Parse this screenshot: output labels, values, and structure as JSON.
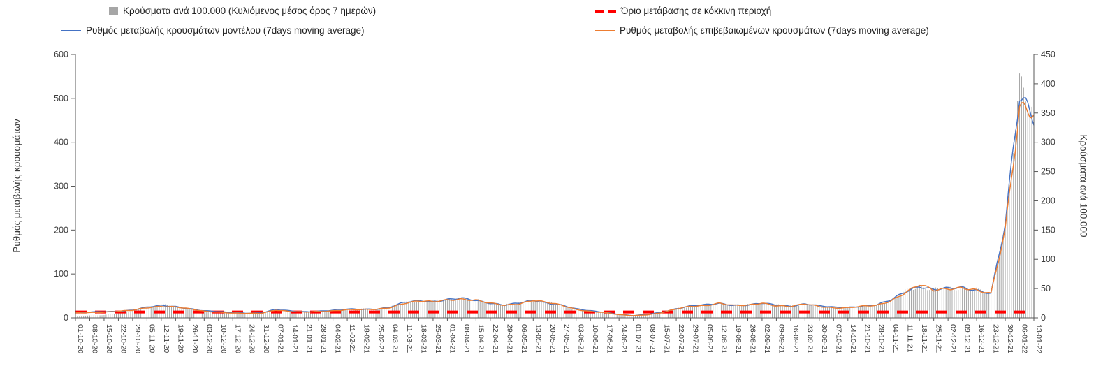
{
  "legend": {
    "bar": "Κρούσματα ανά 100.000 (Κυλιόμενος μέσος όρος 7 ημερών)",
    "threshold": "Όριο μετάβασης σε κόκκινη περιοχή",
    "model": "Ρυθμός μεταβολής κρουσμάτων μοντέλου (7days moving average)",
    "confirmed": "Ρυθμός μεταβολής επιβεβαιωμένων κρουσμάτων (7days moving average)"
  },
  "colors": {
    "bar": "#a6a6a6",
    "threshold": "#ff0000",
    "model": "#4472c4",
    "confirmed": "#ed7d31",
    "axis": "#595959",
    "tick_text": "#3b3b3b"
  },
  "chart_data": {
    "type": "combo",
    "x": [
      "01-10-20",
      "08-10-20",
      "15-10-20",
      "22-10-20",
      "29-10-20",
      "05-11-20",
      "12-11-20",
      "19-11-20",
      "26-11-20",
      "03-12-20",
      "10-12-20",
      "17-12-20",
      "24-12-20",
      "31-12-20",
      "07-01-21",
      "14-01-21",
      "21-01-21",
      "28-01-21",
      "04-02-21",
      "11-02-21",
      "18-02-21",
      "25-02-21",
      "04-03-21",
      "11-03-21",
      "18-03-21",
      "25-03-21",
      "01-04-21",
      "08-04-21",
      "15-04-21",
      "22-04-21",
      "29-04-21",
      "06-05-21",
      "13-05-21",
      "20-05-21",
      "27-05-21",
      "03-06-21",
      "10-06-21",
      "17-06-21",
      "24-06-21",
      "01-07-21",
      "08-07-21",
      "15-07-21",
      "22-07-21",
      "29-07-21",
      "05-08-21",
      "12-08-21",
      "19-08-21",
      "26-08-21",
      "02-09-21",
      "09-09-21",
      "16-09-21",
      "23-09-21",
      "30-09-21",
      "07-10-21",
      "14-10-21",
      "21-10-21",
      "28-10-21",
      "04-11-21",
      "11-11-21",
      "18-11-21",
      "25-11-21",
      "02-12-21",
      "09-12-21",
      "16-12-21",
      "23-12-21",
      "30-12-21",
      "06-01-22",
      "13-01-22"
    ],
    "left_axis": {
      "label": "Ρυθμός μεταβολής κρουσμάτων",
      "min": 0,
      "max": 600,
      "ticks": [
        0,
        100,
        200,
        300,
        400,
        500,
        600
      ]
    },
    "right_axis": {
      "label": "Κρούσματα ανά 100.000",
      "min": 0,
      "max": 450,
      "ticks": [
        0,
        50,
        100,
        150,
        200,
        250,
        300,
        350,
        400,
        450
      ]
    },
    "series": [
      {
        "name": "Κρούσματα ανά 100.000 (Κυλιόμενος μέσος όρος 7 ημερών)",
        "type": "bar",
        "axis": "right",
        "color": "#a6a6a6",
        "values": [
          3,
          4,
          5,
          8,
          12,
          18,
          22,
          20,
          16,
          12,
          10,
          9,
          8,
          8,
          13,
          12,
          10,
          11,
          13,
          15,
          15,
          15,
          18,
          26,
          30,
          28,
          31,
          33,
          30,
          26,
          22,
          25,
          30,
          26,
          22,
          15,
          12,
          10,
          6,
          4,
          6,
          10,
          16,
          20,
          22,
          25,
          22,
          22,
          25,
          22,
          20,
          24,
          20,
          18,
          18,
          20,
          22,
          30,
          45,
          55,
          48,
          50,
          52,
          48,
          42,
          160,
          385,
          360
        ]
      },
      {
        "name": "Ρυθμός μεταβολής κρουσμάτων μοντέλου (7days moving average)",
        "type": "line",
        "axis": "left",
        "color": "#4472c4",
        "values": [
          12,
          13,
          14,
          15,
          18,
          24,
          28,
          26,
          21,
          16,
          14,
          12,
          11,
          11,
          19,
          16,
          14,
          15,
          17,
          20,
          20,
          20,
          24,
          35,
          40,
          37,
          41,
          44,
          40,
          34,
          29,
          33,
          40,
          34,
          29,
          20,
          16,
          13,
          8,
          5,
          8,
          13,
          21,
          27,
          29,
          33,
          29,
          29,
          33,
          29,
          27,
          32,
          27,
          24,
          24,
          27,
          29,
          40,
          60,
          73,
          64,
          66,
          69,
          64,
          56,
          210,
          505,
          465
        ]
      },
      {
        "name": "Ρυθμός μεταβολής επιβεβαιωμένων κρουσμάτων (7days moving average)",
        "type": "line",
        "axis": "left",
        "color": "#ed7d31",
        "values": [
          11,
          12,
          13,
          15,
          17,
          23,
          27,
          25,
          20,
          15,
          13,
          11,
          10,
          10,
          18,
          15,
          13,
          14,
          16,
          19,
          19,
          19,
          23,
          34,
          39,
          36,
          40,
          43,
          41,
          33,
          28,
          32,
          41,
          35,
          28,
          19,
          15,
          12,
          7,
          5,
          7,
          12,
          20,
          26,
          28,
          34,
          28,
          28,
          34,
          28,
          26,
          31,
          26,
          23,
          23,
          26,
          28,
          39,
          58,
          75,
          62,
          67,
          70,
          62,
          54,
          200,
          490,
          470
        ]
      },
      {
        "name": "Όριο μετάβασης σε κόκκινη περιοχή",
        "type": "threshold",
        "axis": "right",
        "color": "#ff0000",
        "value": 10
      }
    ],
    "legend_position": "top",
    "grid": false
  }
}
